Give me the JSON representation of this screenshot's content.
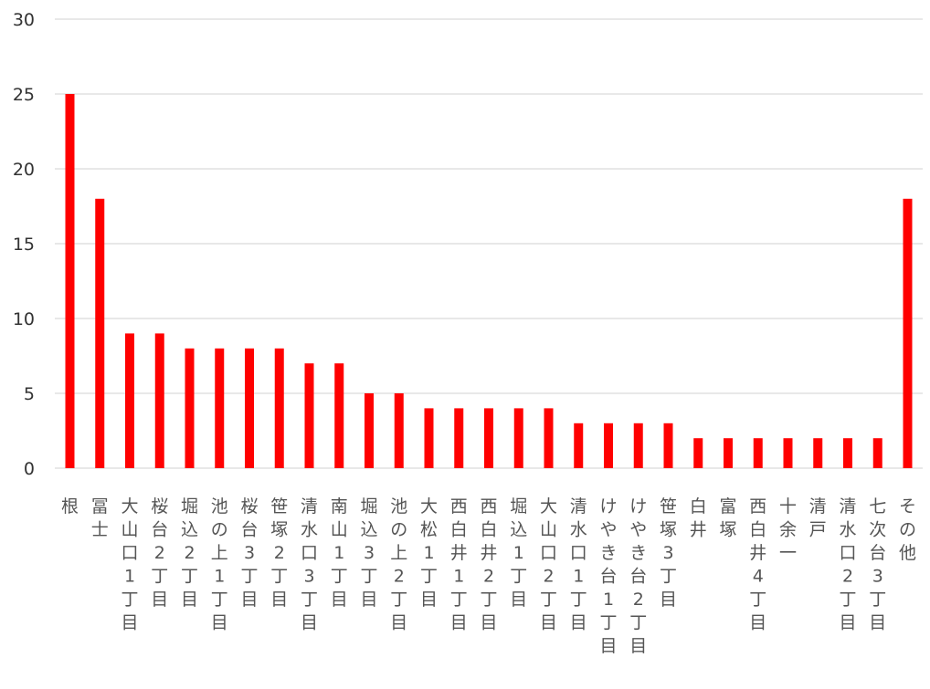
{
  "chart_data": {
    "type": "bar",
    "title": "",
    "xlabel": "",
    "ylabel": "",
    "ylim": [
      0,
      30
    ],
    "yticks": [
      0,
      5,
      10,
      15,
      20,
      25,
      30
    ],
    "grid": true,
    "legend": "none",
    "categories": [
      "根",
      "冨士",
      "大山口1丁目",
      "桜台2丁目",
      "堀込2丁目",
      "池の上1丁目",
      "桜台3丁目",
      "笹塚2丁目",
      "清水口3丁目",
      "南山1丁目",
      "堀込3丁目",
      "池の上2丁目",
      "大松1丁目",
      "西白井1丁目",
      "西白井2丁目",
      "堀込1丁目",
      "大山口2丁目",
      "清水口1丁目",
      "けやき台1丁目",
      "けやき台2丁目",
      "笹塚3丁目",
      "白井",
      "富塚",
      "西白井4丁目",
      "十余一",
      "清戸",
      "清水口2丁目",
      "七次台3丁目",
      "その他"
    ],
    "values": [
      25,
      18,
      9,
      9,
      8,
      8,
      8,
      8,
      7,
      7,
      5,
      5,
      4,
      4,
      4,
      4,
      4,
      3,
      3,
      3,
      3,
      2,
      2,
      2,
      2,
      2,
      2,
      2,
      18
    ],
    "colors": {
      "bar": "#ff0000",
      "grid": "#d9d9d9",
      "axis": "#d9d9d9",
      "text": "#404040"
    }
  }
}
